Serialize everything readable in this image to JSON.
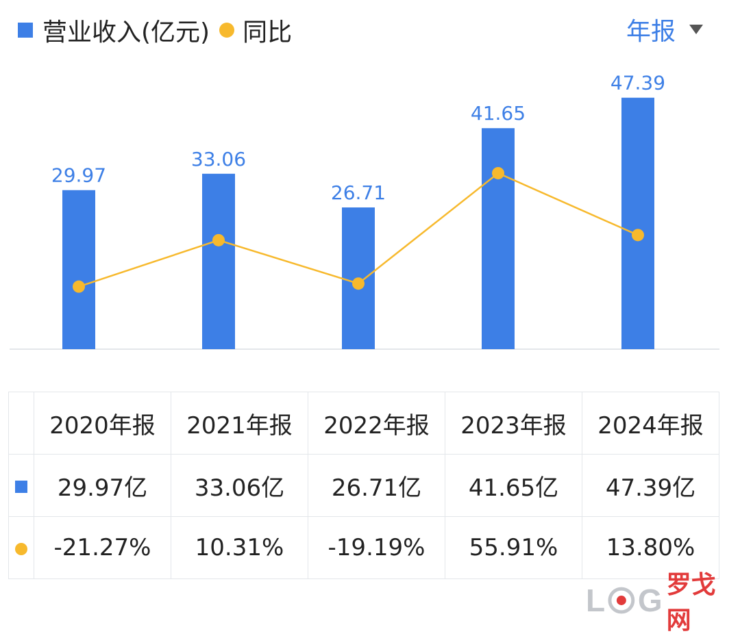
{
  "legend": {
    "revenue_label": "营业收入(亿元)",
    "yoy_label": "同比"
  },
  "period_selector": {
    "label": "年报"
  },
  "colors": {
    "bar": "#3d7fe6",
    "line": "#f7b92d",
    "negative": "#2e9e5e",
    "positive": "#e0474c"
  },
  "chart_data": {
    "type": "bar",
    "categories": [
      "2020年报",
      "2021年报",
      "2022年报",
      "2023年报",
      "2024年报"
    ],
    "series": [
      {
        "name": "营业收入(亿元)",
        "type": "bar",
        "values": [
          29.97,
          33.06,
          26.71,
          41.65,
          47.39
        ]
      },
      {
        "name": "同比",
        "type": "line",
        "values": [
          -21.27,
          10.31,
          -19.19,
          55.91,
          13.8
        ]
      }
    ],
    "data_labels": [
      "29.97",
      "33.06",
      "26.71",
      "41.65",
      "47.39"
    ],
    "legend_position": "top-left"
  },
  "table": {
    "headers": [
      "2020年报",
      "2021年报",
      "2022年报",
      "2023年报",
      "2024年报"
    ],
    "revenue": [
      "29.97亿",
      "33.06亿",
      "26.71亿",
      "41.65亿",
      "47.39亿"
    ],
    "yoy": [
      "-21.27%",
      "10.31%",
      "-19.19%",
      "55.91%",
      "13.80%"
    ]
  },
  "watermark": {
    "latin_l": "L",
    "latin_g": "G",
    "cn": "罗戈网"
  }
}
